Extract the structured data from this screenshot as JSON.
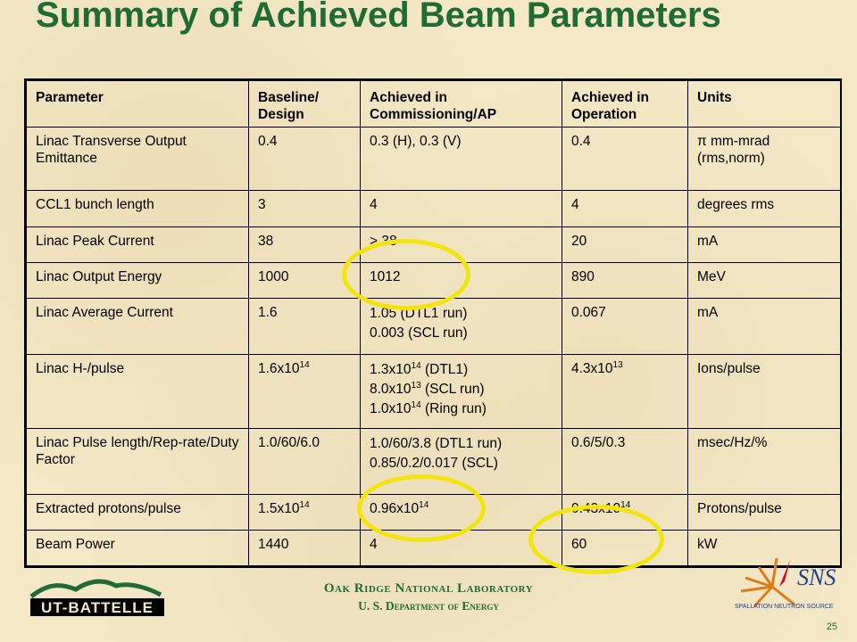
{
  "title": "Summary of Achieved Beam Parameters",
  "table": {
    "headers": [
      "Parameter",
      "Baseline/ Design",
      "Achieved in Commissioning/AP",
      "Achieved in Operation",
      "Units"
    ],
    "rows": [
      {
        "param": "Linac Transverse Output Emittance",
        "baseline": "0.4",
        "commissioning": "0.3 (H), 0.3 (V)",
        "operation": "0.4",
        "units": "π mm-mrad (rms,norm)"
      },
      {
        "param": "CCL1 bunch length",
        "baseline": "3",
        "commissioning": "4",
        "operation": "4",
        "units": "degrees rms"
      },
      {
        "param": "Linac Peak Current",
        "baseline": "38",
        "commissioning": "> 38",
        "operation": "20",
        "units": "mA"
      },
      {
        "param": "Linac Output Energy",
        "baseline": "1000",
        "commissioning": "1012",
        "operation": "890",
        "units": "MeV"
      },
      {
        "param": "Linac Average Current",
        "baseline": "1.6",
        "commissioning_1": "1.05 (DTL1 run)",
        "commissioning_2": "0.003 (SCL run)",
        "operation": "0.067",
        "units": "mA"
      },
      {
        "param": "Linac H-/pulse",
        "baseline_base": "1.6x10",
        "baseline_exp": "14",
        "comm_1_base": "1.3x10",
        "comm_1_exp": "14",
        "comm_1_rest": " (DTL1)",
        "comm_2_base": "8.0x10",
        "comm_2_exp": "13",
        "comm_2_rest": " (SCL run)",
        "comm_3_base": "1.0x10",
        "comm_3_exp": "14",
        "comm_3_rest": " (Ring run)",
        "operation_base": "4.3x10",
        "operation_exp": "13",
        "units": "Ions/pulse"
      },
      {
        "param": "Linac Pulse length/Rep-rate/Duty Factor",
        "baseline": "1.0/60/6.0",
        "commissioning_1": "1.0/60/3.8 (DTL1 run)",
        "commissioning_2": "0.85/0.2/0.017 (SCL)",
        "operation": "0.6/5/0.3",
        "units": "msec/Hz/%"
      },
      {
        "param": "Extracted protons/pulse",
        "baseline_base": "1.5x10",
        "baseline_exp": "14",
        "comm_base": "0.96x10",
        "comm_exp": "14",
        "operation_base": "0.43x10",
        "operation_exp": "14",
        "units": "Protons/pulse"
      },
      {
        "param": "Beam Power",
        "baseline": "1440",
        "commissioning": "4",
        "operation": "60",
        "units": "kW"
      }
    ]
  },
  "footer": {
    "lab_name": "Oak Ridge National Laboratory",
    "department": "U. S. Department of Energy",
    "left_logo_text": "UT-BATTELLE",
    "right_logo_text": "SNS",
    "right_logo_subtext": "SPALLATION NEUTRON SOURCE",
    "page_number": "25"
  },
  "colors": {
    "title": "#1f6b33",
    "highlight_circle": "#f2e40f",
    "background": "#f3e7c6"
  }
}
